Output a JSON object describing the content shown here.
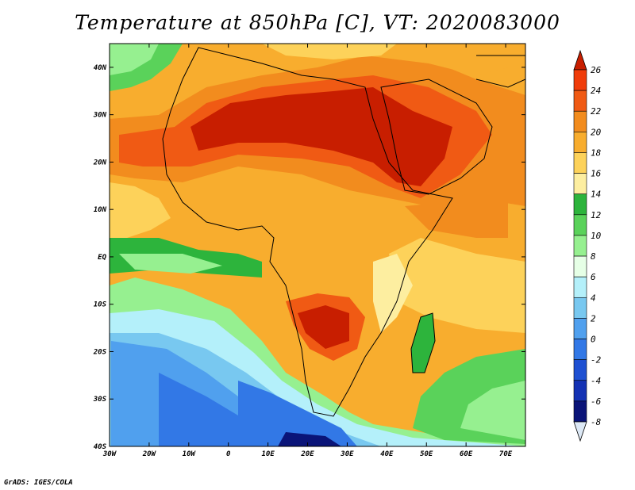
{
  "title": "Temperature at 850hPa [C], VT: 2020083000",
  "footer": "GrADS: IGES/COLA",
  "map": {
    "lon_range": [
      -30,
      75
    ],
    "lat_range": [
      -40,
      45
    ],
    "lon_ticks": [
      {
        "value": -30,
        "label": "30W"
      },
      {
        "value": -20,
        "label": "20W"
      },
      {
        "value": -10,
        "label": "10W"
      },
      {
        "value": 0,
        "label": "0"
      },
      {
        "value": 10,
        "label": "10E"
      },
      {
        "value": 20,
        "label": "20E"
      },
      {
        "value": 30,
        "label": "30E"
      },
      {
        "value": 40,
        "label": "40E"
      },
      {
        "value": 50,
        "label": "50E"
      },
      {
        "value": 60,
        "label": "60E"
      },
      {
        "value": 70,
        "label": "70E"
      }
    ],
    "lat_ticks": [
      {
        "value": 40,
        "label": "40N"
      },
      {
        "value": 30,
        "label": "30N"
      },
      {
        "value": 20,
        "label": "20N"
      },
      {
        "value": 10,
        "label": "10N"
      },
      {
        "value": 0,
        "label": "EQ"
      },
      {
        "value": -10,
        "label": "10S"
      },
      {
        "value": -20,
        "label": "20S"
      },
      {
        "value": -30,
        "label": "30S"
      },
      {
        "value": -40,
        "label": "40S"
      }
    ]
  },
  "colorbar": {
    "labels": [
      "26",
      "24",
      "22",
      "20",
      "18",
      "16",
      "14",
      "12",
      "10",
      "8",
      "6",
      "4",
      "2",
      "0",
      "-2",
      "-4",
      "-6",
      "-8"
    ],
    "colors": [
      "#c81e00",
      "#f03c0a",
      "#f05a14",
      "#f28c1e",
      "#f8ad2e",
      "#fdd25a",
      "#fdeea0",
      "#2db43c",
      "#5ad25a",
      "#96f090",
      "#e6ffe6",
      "#b4f0fa",
      "#78c8f0",
      "#50a0ee",
      "#3278e6",
      "#1e50d2",
      "#1432b4",
      "#0a1478",
      "#dce8f5"
    ]
  }
}
